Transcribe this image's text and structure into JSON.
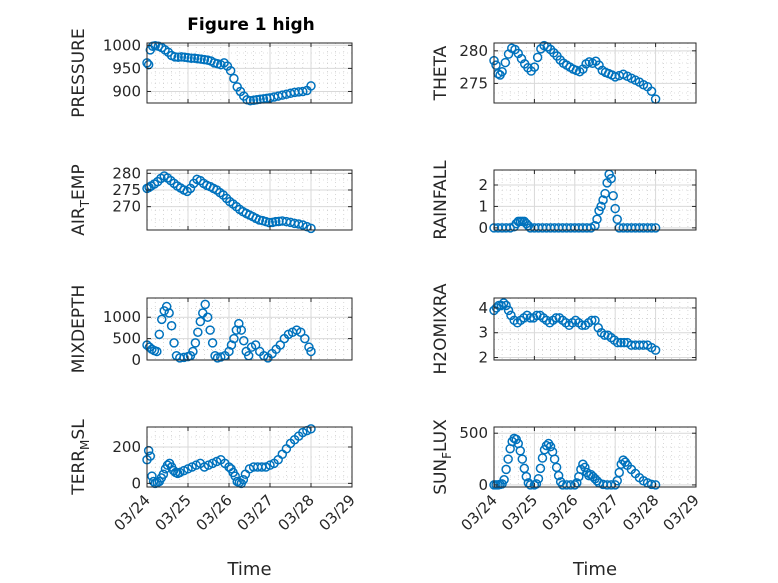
{
  "figure_title": "Figure 1 high",
  "colors": {
    "marker": "#0072BD",
    "axis": "#262626",
    "grid": "#d9d9d9",
    "minor_grid": "#bfbfbf"
  },
  "chart_data": [
    {
      "type": "scatter",
      "ylabel": "PRESSURE",
      "yticks": [
        "900",
        "950",
        "1000"
      ],
      "ytick_values": [
        900,
        950,
        1000
      ],
      "ylim": [
        875,
        1005
      ],
      "xlim": [
        0,
        5
      ],
      "xticks": [],
      "xlabel": "",
      "series": [
        {
          "x": [
            0.0,
            0.04,
            0.08,
            0.14,
            0.2,
            0.28,
            0.36,
            0.44,
            0.52,
            0.6,
            0.68,
            0.76,
            0.84,
            0.92,
            1.0,
            1.08,
            1.16,
            1.24,
            1.32,
            1.4,
            1.48,
            1.56,
            1.64,
            1.72,
            1.8,
            1.88,
            1.96,
            2.04,
            2.12,
            2.2,
            2.28,
            2.36,
            2.44,
            2.52,
            2.6,
            2.68,
            2.76,
            2.84,
            2.92,
            3.0,
            3.1,
            3.2,
            3.3,
            3.4,
            3.5,
            3.6,
            3.7,
            3.8,
            3.9,
            4.0
          ],
          "y": [
            962,
            958,
            990,
            998,
            999,
            998,
            995,
            990,
            985,
            978,
            975,
            974,
            975,
            974,
            973,
            972,
            972,
            971,
            970,
            969,
            968,
            966,
            962,
            960,
            958,
            962,
            955,
            945,
            928,
            910,
            900,
            890,
            882,
            880,
            881,
            882,
            883,
            884,
            885,
            886,
            888,
            890,
            892,
            894,
            896,
            898,
            899,
            900,
            902,
            912
          ]
        }
      ]
    },
    {
      "type": "scatter",
      "ylabel": "THETA",
      "yticks": [
        "275",
        "280"
      ],
      "ytick_values": [
        275,
        280
      ],
      "ylim": [
        272,
        281.2
      ],
      "xlim": [
        0,
        5
      ],
      "xticks": [],
      "xlabel": "",
      "series": [
        {
          "x": [
            0.0,
            0.05,
            0.1,
            0.15,
            0.2,
            0.28,
            0.36,
            0.44,
            0.52,
            0.6,
            0.68,
            0.76,
            0.84,
            0.92,
            1.0,
            1.08,
            1.16,
            1.24,
            1.32,
            1.4,
            1.48,
            1.56,
            1.64,
            1.72,
            1.8,
            1.88,
            1.96,
            2.04,
            2.12,
            2.2,
            2.28,
            2.36,
            2.44,
            2.52,
            2.6,
            2.68,
            2.76,
            2.84,
            2.92,
            3.0,
            3.1,
            3.2,
            3.3,
            3.4,
            3.5,
            3.6,
            3.7,
            3.8,
            3.9,
            4.0
          ],
          "y": [
            278.5,
            277.8,
            276.5,
            276.3,
            276.8,
            278.2,
            279.5,
            280.4,
            280.2,
            279.6,
            278.8,
            278.0,
            277.4,
            276.9,
            277.5,
            279.0,
            280.3,
            280.8,
            280.6,
            280.2,
            279.7,
            279.2,
            278.6,
            278.1,
            277.8,
            277.5,
            277.2,
            277.0,
            276.8,
            277.2,
            278.0,
            278.3,
            278.1,
            278.4,
            277.8,
            277.0,
            276.7,
            276.5,
            276.3,
            276.0,
            276.2,
            276.4,
            276.1,
            275.8,
            275.5,
            275.2,
            274.8,
            274.5,
            273.8,
            272.6
          ]
        }
      ]
    },
    {
      "type": "scatter",
      "ylabel": "AIR_TEMP",
      "yticks": [
        "270",
        "275",
        "280"
      ],
      "ytick_values": [
        270,
        275,
        280
      ],
      "ylim": [
        263,
        281
      ],
      "xlim": [
        0,
        5
      ],
      "xticks": [],
      "xlabel": "",
      "series": [
        {
          "x": [
            0.0,
            0.05,
            0.1,
            0.18,
            0.26,
            0.34,
            0.42,
            0.5,
            0.58,
            0.66,
            0.74,
            0.82,
            0.9,
            0.98,
            1.06,
            1.14,
            1.22,
            1.3,
            1.38,
            1.46,
            1.54,
            1.62,
            1.7,
            1.78,
            1.86,
            1.94,
            2.02,
            2.1,
            2.18,
            2.26,
            2.34,
            2.42,
            2.5,
            2.58,
            2.66,
            2.74,
            2.82,
            2.9,
            2.98,
            3.06,
            3.14,
            3.22,
            3.3,
            3.4,
            3.5,
            3.6,
            3.7,
            3.8,
            3.9,
            4.0
          ],
          "y": [
            275.5,
            275.8,
            276.2,
            276.8,
            277.5,
            278.5,
            279.2,
            278.6,
            277.8,
            277.0,
            276.2,
            275.6,
            275.0,
            274.6,
            275.5,
            277.0,
            278.2,
            277.8,
            277.0,
            276.4,
            276.0,
            275.5,
            275.0,
            274.2,
            273.5,
            272.5,
            271.5,
            270.8,
            270.0,
            269.2,
            268.5,
            268.0,
            267.5,
            267.0,
            266.5,
            266.0,
            265.8,
            265.5,
            265.2,
            265.3,
            265.5,
            265.6,
            265.7,
            265.5,
            265.3,
            265.0,
            264.8,
            264.5,
            264.0,
            263.5
          ]
        }
      ]
    },
    {
      "type": "scatter",
      "ylabel": "RAINFALL",
      "yticks": [
        "0",
        "1",
        "2"
      ],
      "ytick_values": [
        0,
        1,
        2
      ],
      "ylim": [
        -0.1,
        2.7
      ],
      "xlim": [
        0,
        5
      ],
      "xticks": [],
      "xlabel": "",
      "series": [
        {
          "x": [
            0.0,
            0.1,
            0.2,
            0.3,
            0.4,
            0.5,
            0.55,
            0.6,
            0.65,
            0.7,
            0.75,
            0.8,
            0.85,
            0.9,
            1.0,
            1.1,
            1.2,
            1.3,
            1.4,
            1.5,
            1.6,
            1.7,
            1.8,
            1.9,
            2.0,
            2.1,
            2.2,
            2.3,
            2.4,
            2.5,
            2.55,
            2.6,
            2.65,
            2.7,
            2.75,
            2.8,
            2.85,
            2.9,
            2.95,
            3.0,
            3.05,
            3.1,
            3.2,
            3.3,
            3.4,
            3.5,
            3.6,
            3.7,
            3.8,
            3.9,
            4.0
          ],
          "y": [
            0,
            0,
            0,
            0,
            0,
            0.05,
            0.2,
            0.3,
            0.3,
            0.3,
            0.3,
            0.2,
            0.1,
            0,
            0,
            0,
            0,
            0,
            0,
            0,
            0,
            0,
            0,
            0,
            0,
            0,
            0,
            0,
            0,
            0.1,
            0.4,
            0.8,
            1.0,
            1.3,
            1.6,
            2.1,
            2.5,
            2.3,
            1.5,
            0.9,
            0.4,
            0,
            0,
            0,
            0,
            0,
            0,
            0,
            0,
            0,
            0
          ]
        }
      ]
    },
    {
      "type": "scatter",
      "ylabel": "MIXDEPTH",
      "yticks": [
        "0",
        "500",
        "1000"
      ],
      "ytick_values": [
        0,
        500,
        1000
      ],
      "ylim": [
        0,
        1450
      ],
      "xlim": [
        0,
        5
      ],
      "xticks": [],
      "xlabel": "",
      "series": [
        {
          "x": [
            0.0,
            0.06,
            0.12,
            0.18,
            0.24,
            0.3,
            0.36,
            0.42,
            0.48,
            0.54,
            0.6,
            0.66,
            0.72,
            0.8,
            0.9,
            1.0,
            1.06,
            1.12,
            1.18,
            1.24,
            1.3,
            1.36,
            1.42,
            1.48,
            1.54,
            1.6,
            1.66,
            1.72,
            1.8,
            1.9,
            2.0,
            2.06,
            2.12,
            2.18,
            2.24,
            2.3,
            2.36,
            2.42,
            2.48,
            2.55,
            2.65,
            2.75,
            2.85,
            2.95,
            3.05,
            3.15,
            3.25,
            3.35,
            3.45,
            3.55,
            3.65,
            3.75,
            3.85,
            3.95,
            4.0
          ],
          "y": [
            350,
            300,
            250,
            220,
            200,
            600,
            950,
            1150,
            1250,
            1100,
            800,
            400,
            100,
            50,
            60,
            80,
            100,
            200,
            400,
            650,
            900,
            1100,
            1300,
            1000,
            700,
            400,
            100,
            50,
            70,
            100,
            200,
            350,
            500,
            700,
            850,
            700,
            450,
            200,
            100,
            300,
            350,
            200,
            100,
            50,
            150,
            250,
            350,
            500,
            600,
            650,
            700,
            650,
            500,
            300,
            200
          ]
        }
      ]
    },
    {
      "type": "scatter",
      "ylabel": "H2OMIXRA",
      "yticks": [
        "2",
        "3",
        "4"
      ],
      "ytick_values": [
        2,
        3,
        4
      ],
      "ylim": [
        1.9,
        4.4
      ],
      "xlim": [
        0,
        5
      ],
      "xticks": [],
      "xlabel": "",
      "series": [
        {
          "x": [
            0.0,
            0.06,
            0.12,
            0.18,
            0.24,
            0.3,
            0.36,
            0.42,
            0.5,
            0.58,
            0.66,
            0.74,
            0.82,
            0.9,
            0.98,
            1.06,
            1.14,
            1.22,
            1.3,
            1.38,
            1.46,
            1.54,
            1.62,
            1.7,
            1.78,
            1.86,
            1.94,
            2.02,
            2.1,
            2.18,
            2.26,
            2.34,
            2.42,
            2.5,
            2.58,
            2.66,
            2.74,
            2.82,
            2.9,
            2.98,
            3.06,
            3.14,
            3.22,
            3.3,
            3.4,
            3.5,
            3.6,
            3.7,
            3.8,
            3.9,
            4.0
          ],
          "y": [
            3.9,
            4.0,
            4.1,
            4.1,
            4.2,
            4.1,
            3.9,
            3.7,
            3.5,
            3.4,
            3.5,
            3.6,
            3.7,
            3.6,
            3.6,
            3.7,
            3.7,
            3.6,
            3.5,
            3.4,
            3.5,
            3.6,
            3.6,
            3.5,
            3.4,
            3.3,
            3.4,
            3.5,
            3.4,
            3.3,
            3.3,
            3.4,
            3.5,
            3.5,
            3.2,
            3.0,
            2.9,
            2.9,
            2.8,
            2.7,
            2.6,
            2.6,
            2.6,
            2.6,
            2.5,
            2.5,
            2.5,
            2.5,
            2.5,
            2.4,
            2.3
          ]
        }
      ]
    },
    {
      "type": "scatter",
      "ylabel": "TERR_MSL",
      "yticks": [
        "0",
        "200"
      ],
      "ytick_values": [
        0,
        200
      ],
      "ylim": [
        -20,
        310
      ],
      "xlim": [
        0,
        5
      ],
      "xticks": [
        "03/24",
        "03/25",
        "03/26",
        "03/27",
        "03/28",
        "03/29"
      ],
      "xtick_values": [
        0,
        1,
        2,
        3,
        4,
        5
      ],
      "xlabel": "Time",
      "series": [
        {
          "x": [
            0.0,
            0.04,
            0.08,
            0.12,
            0.16,
            0.2,
            0.25,
            0.3,
            0.35,
            0.4,
            0.45,
            0.5,
            0.55,
            0.6,
            0.65,
            0.7,
            0.75,
            0.8,
            0.9,
            1.0,
            1.1,
            1.2,
            1.3,
            1.4,
            1.5,
            1.6,
            1.7,
            1.8,
            1.9,
            2.0,
            2.05,
            2.1,
            2.15,
            2.2,
            2.25,
            2.3,
            2.35,
            2.4,
            2.5,
            2.6,
            2.7,
            2.8,
            2.9,
            3.0,
            3.1,
            3.2,
            3.3,
            3.4,
            3.5,
            3.6,
            3.7,
            3.8,
            3.9,
            4.0
          ],
          "y": [
            130,
            180,
            150,
            40,
            10,
            0,
            5,
            10,
            30,
            50,
            80,
            100,
            110,
            90,
            70,
            60,
            55,
            60,
            70,
            80,
            90,
            100,
            110,
            90,
            100,
            110,
            120,
            130,
            110,
            90,
            80,
            60,
            40,
            10,
            5,
            0,
            20,
            50,
            80,
            90,
            90,
            90,
            90,
            100,
            110,
            130,
            160,
            190,
            220,
            240,
            260,
            280,
            290,
            300
          ]
        }
      ]
    },
    {
      "type": "scatter",
      "ylabel": "SUN_FLUX",
      "yticks": [
        "0",
        "500"
      ],
      "ytick_values": [
        0,
        500
      ],
      "ylim": [
        -20,
        560
      ],
      "xlim": [
        0,
        5
      ],
      "xticks": [
        "03/24",
        "03/25",
        "03/26",
        "03/27",
        "03/28",
        "03/29"
      ],
      "xtick_values": [
        0,
        1,
        2,
        3,
        4,
        5
      ],
      "xlabel": "Time",
      "series": [
        {
          "x": [
            0.0,
            0.05,
            0.1,
            0.15,
            0.2,
            0.25,
            0.3,
            0.35,
            0.4,
            0.45,
            0.5,
            0.55,
            0.6,
            0.65,
            0.7,
            0.75,
            0.8,
            0.85,
            0.9,
            1.0,
            1.05,
            1.1,
            1.15,
            1.2,
            1.25,
            1.3,
            1.35,
            1.4,
            1.45,
            1.5,
            1.55,
            1.6,
            1.65,
            1.7,
            1.8,
            1.9,
            2.0,
            2.05,
            2.1,
            2.15,
            2.2,
            2.25,
            2.3,
            2.35,
            2.4,
            2.45,
            2.5,
            2.55,
            2.6,
            2.7,
            2.8,
            2.9,
            3.0,
            3.05,
            3.1,
            3.15,
            3.2,
            3.25,
            3.3,
            3.4,
            3.5,
            3.6,
            3.7,
            3.8,
            3.9,
            4.0
          ],
          "y": [
            0,
            0,
            0,
            5,
            10,
            50,
            150,
            250,
            350,
            420,
            450,
            440,
            400,
            330,
            250,
            160,
            80,
            20,
            0,
            0,
            10,
            60,
            160,
            260,
            340,
            380,
            400,
            370,
            320,
            250,
            170,
            90,
            30,
            0,
            0,
            0,
            0,
            20,
            80,
            150,
            200,
            170,
            120,
            90,
            100,
            80,
            60,
            40,
            20,
            5,
            0,
            0,
            0,
            40,
            120,
            200,
            240,
            220,
            190,
            150,
            110,
            70,
            40,
            20,
            5,
            0
          ]
        }
      ]
    }
  ]
}
